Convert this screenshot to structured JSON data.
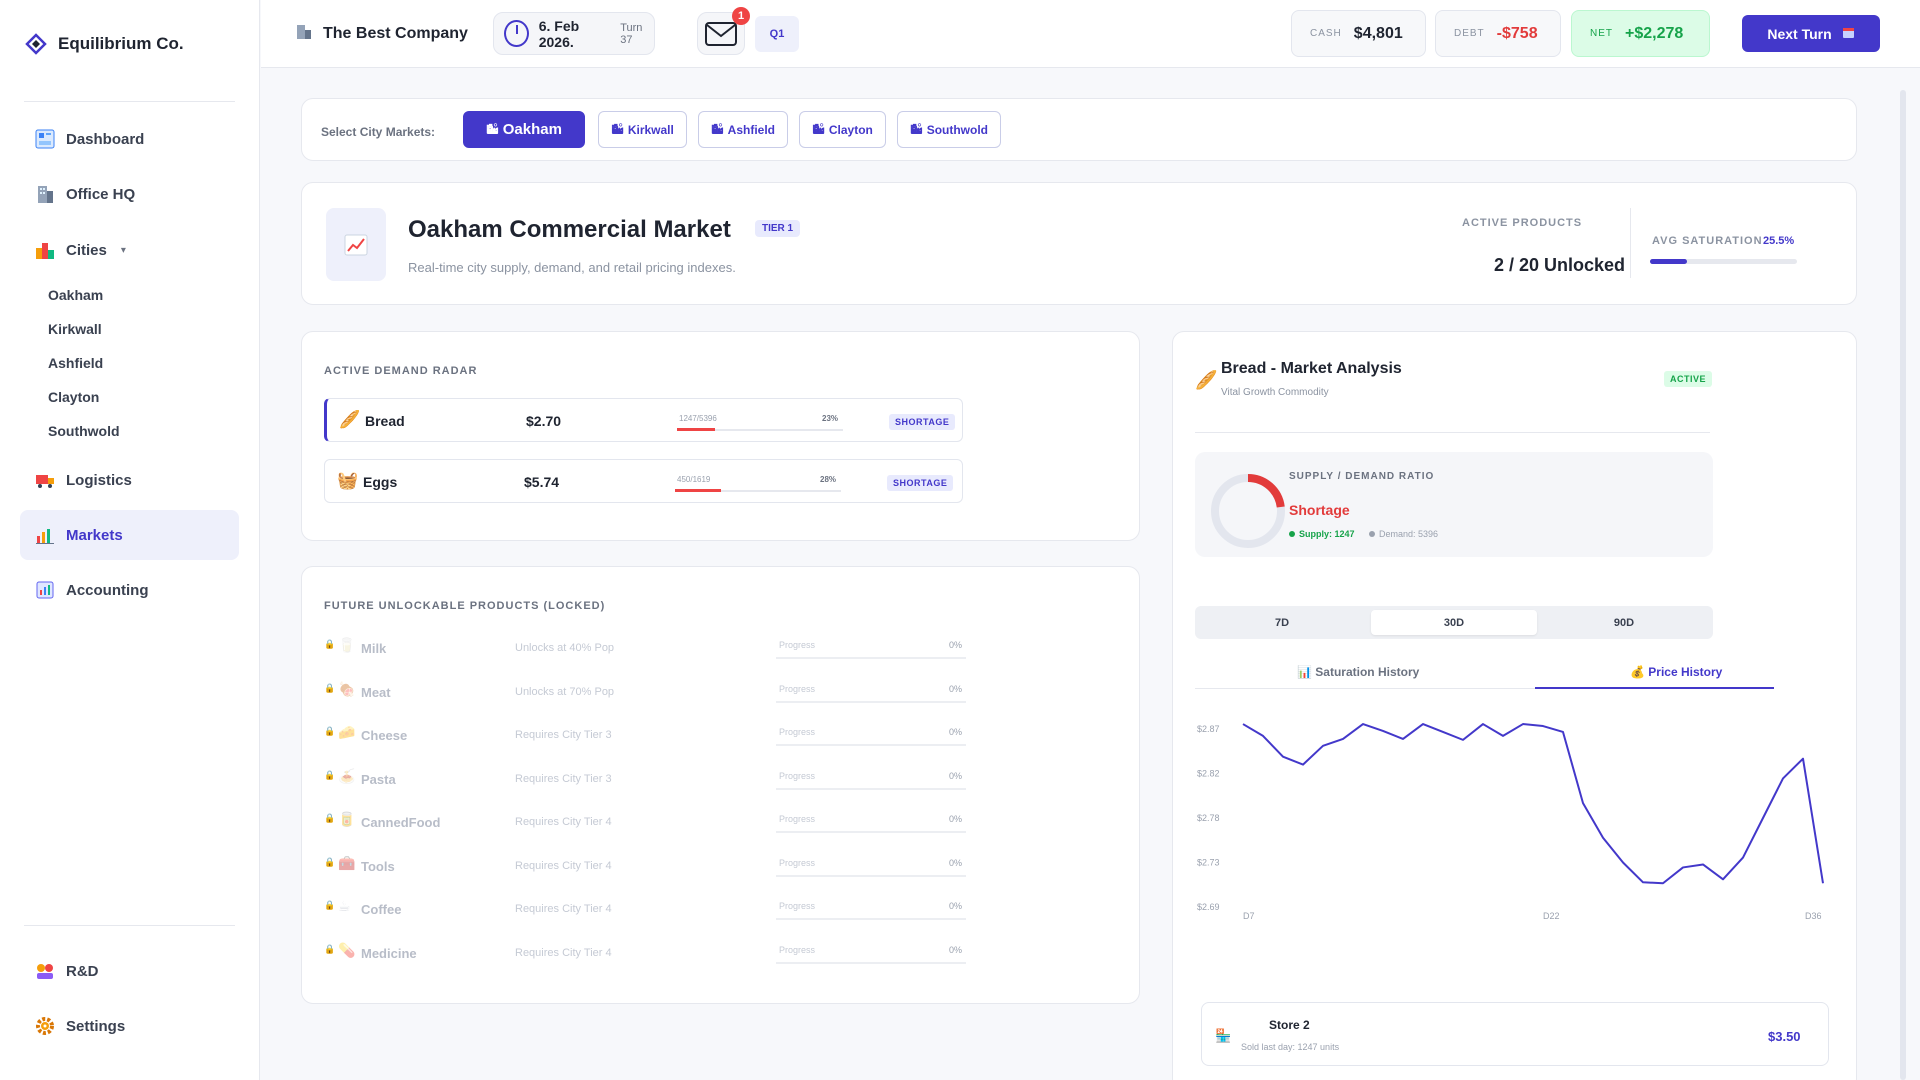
{
  "app": {
    "brand": "Equilibrium Co.",
    "company": "The Best Company",
    "date": "6. Feb 2026.",
    "turn": "Turn 37",
    "mail_count": "1",
    "quarter": "Q1",
    "cash_label": "CASH",
    "cash": "$4,801",
    "debt_label": "DEBT",
    "debt": "-$758",
    "net_label": "NET",
    "net": "+$2,278",
    "next_turn": "Next Turn"
  },
  "sidebar": {
    "items": [
      {
        "label": "Dashboard",
        "icon": "dashboard-icon"
      },
      {
        "label": "Office HQ",
        "icon": "office-icon"
      },
      {
        "label": "Cities",
        "icon": "cities-icon"
      },
      {
        "label": "Logistics",
        "icon": "logistics-icon"
      },
      {
        "label": "Markets",
        "icon": "markets-icon"
      },
      {
        "label": "Accounting",
        "icon": "accounting-icon"
      },
      {
        "label": "R&D",
        "icon": "rnd-icon"
      },
      {
        "label": "Settings",
        "icon": "settings-icon"
      }
    ],
    "cities": [
      "Oakham",
      "Kirkwall",
      "Ashfield",
      "Clayton",
      "Southwold"
    ]
  },
  "city_select": {
    "label": "Select City Markets:",
    "cities": [
      "Oakham",
      "Kirkwall",
      "Ashfield",
      "Clayton",
      "Southwold"
    ],
    "active": "Oakham"
  },
  "market": {
    "title": "Oakham Commercial Market",
    "tier": "TIER 1",
    "subtitle": "Real-time city supply, demand, and retail pricing indexes.",
    "active_products_label": "ACTIVE PRODUCTS",
    "active_products": "2 / 20 Unlocked",
    "avg_saturation_label": "AVG SATURATION",
    "avg_saturation": "25.5%",
    "avg_saturation_fraction": 0.255
  },
  "demand": {
    "title": "ACTIVE DEMAND RADAR",
    "rows": [
      {
        "name": "Bread",
        "price": "$2.70",
        "ratio": "1247/5396",
        "pct": "23%",
        "fill": 0.23,
        "tag": "SHORTAGE"
      },
      {
        "name": "Eggs",
        "price": "$5.74",
        "ratio": "450/1619",
        "pct": "28%",
        "fill": 0.28,
        "tag": "SHORTAGE"
      }
    ]
  },
  "locked": {
    "title": "FUTURE UNLOCKABLE PRODUCTS (LOCKED)",
    "progress_label": "Progress",
    "rows": [
      {
        "name": "Milk",
        "req": "Unlocks at 40% Pop",
        "pct": "0%"
      },
      {
        "name": "Meat",
        "req": "Unlocks at 70% Pop",
        "pct": "0%"
      },
      {
        "name": "Cheese",
        "req": "Requires City Tier 3",
        "pct": "0%"
      },
      {
        "name": "Pasta",
        "req": "Requires City Tier 3",
        "pct": "0%"
      },
      {
        "name": "CannedFood",
        "req": "Requires City Tier 4",
        "pct": "0%"
      },
      {
        "name": "Tools",
        "req": "Requires City Tier 4",
        "pct": "0%"
      },
      {
        "name": "Coffee",
        "req": "Requires City Tier 4",
        "pct": "0%"
      },
      {
        "name": "Medicine",
        "req": "Requires City Tier 4",
        "pct": "0%"
      }
    ]
  },
  "analysis": {
    "title": "Bread - Market Analysis",
    "subtitle": "Vital Growth Commodity",
    "status_tag": "ACTIVE",
    "ratio_label": "SUPPLY / DEMAND RATIO",
    "ratio_status": "Shortage",
    "supply": "Supply: 1247",
    "demand": "Demand: 5396",
    "supply_fraction": 0.23,
    "ranges": [
      "7D",
      "30D",
      "90D"
    ],
    "active_range": "30D",
    "tabs": [
      "Saturation History",
      "Price History"
    ],
    "active_tab": "Price History",
    "store_name": "Store 2",
    "store_sub": "Sold last day: 1247 units",
    "store_price": "$3.50"
  },
  "chart_data": {
    "type": "line",
    "title": "",
    "xlabel": "",
    "ylabel": "",
    "x_ticks": [
      "D7",
      "D22",
      "D36"
    ],
    "y_ticks": [
      "$2.87",
      "$2.82",
      "$2.78",
      "$2.73",
      "$2.69"
    ],
    "ylim": [
      2.69,
      2.87
    ],
    "x": [
      7,
      8,
      9,
      10,
      11,
      12,
      13,
      14,
      15,
      16,
      17,
      18,
      19,
      20,
      21,
      22,
      23,
      24,
      25,
      26,
      27,
      28,
      29,
      30,
      31,
      32,
      33,
      34,
      35,
      36
    ],
    "values": [
      2.875,
      2.863,
      2.842,
      2.834,
      2.853,
      2.86,
      2.875,
      2.868,
      2.86,
      2.875,
      2.867,
      2.859,
      2.875,
      2.863,
      2.875,
      2.873,
      2.867,
      2.795,
      2.76,
      2.735,
      2.715,
      2.714,
      2.73,
      2.733,
      2.718,
      2.74,
      2.78,
      2.82,
      2.84,
      2.714
    ],
    "color": "#4338ca"
  }
}
